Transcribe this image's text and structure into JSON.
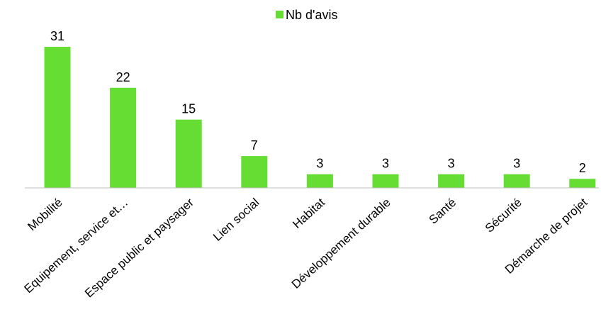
{
  "chart_data": {
    "type": "bar",
    "categories": [
      "Mobilité",
      "Equipement, service et…",
      "Espace public et paysager",
      "Lien social",
      "Habitat",
      "Développement durable",
      "Santé",
      "Sécurité",
      "Démarche de projet"
    ],
    "series": [
      {
        "name": "Nb d'avis",
        "values": [
          31,
          22,
          15,
          7,
          3,
          3,
          3,
          3,
          2
        ]
      }
    ],
    "colors": {
      "bar": "#66dd33",
      "axis": "#bfbfbf"
    },
    "legend": "top-center",
    "grid": false,
    "data_labels": true,
    "ylim": [
      0,
      31
    ]
  }
}
